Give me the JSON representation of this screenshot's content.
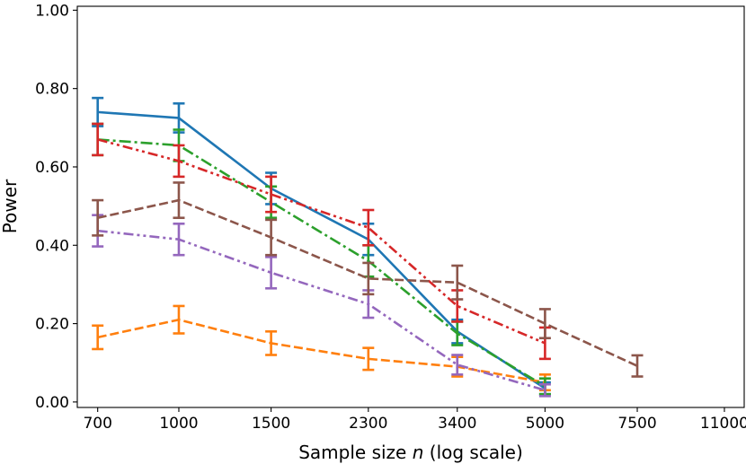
{
  "chart_data": {
    "type": "line",
    "title": "",
    "xlabel": "Sample size n (log scale)",
    "xlabel_prefix": "Sample size ",
    "xlabel_var": "n",
    "xlabel_suffix": " (log scale)",
    "ylabel": "Power",
    "xscale": "log",
    "x_ticks": [
      700,
      1000,
      1500,
      2300,
      3400,
      5000,
      7500,
      11000
    ],
    "x_tick_labels": [
      "700",
      "1000",
      "1500",
      "2300",
      "3400",
      "5000",
      "7500",
      "11000"
    ],
    "y_ticks": [
      0.0,
      0.2,
      0.4,
      0.6,
      0.8,
      1.0
    ],
    "y_tick_labels": [
      "0.00",
      "0.20",
      "0.40",
      "0.60",
      "0.80",
      "1.00"
    ],
    "ylim": [
      0.0,
      1.0
    ],
    "legend": "none",
    "grid": false,
    "series": [
      {
        "name": "series-blue",
        "color": "#1f77b4",
        "dash": "solid",
        "x": [
          700,
          1000,
          1500,
          2300,
          3400,
          5000
        ],
        "y": [
          0.74,
          0.725,
          0.545,
          0.415,
          0.18,
          0.035
        ],
        "err": [
          0.036,
          0.037,
          0.04,
          0.04,
          0.03,
          0.015
        ]
      },
      {
        "name": "series-orange",
        "color": "#ff7f0e",
        "dash": "dashed",
        "x": [
          700,
          1000,
          1500,
          2300,
          3400,
          5000
        ],
        "y": [
          0.165,
          0.21,
          0.15,
          0.11,
          0.09,
          0.05
        ],
        "err": [
          0.03,
          0.035,
          0.03,
          0.028,
          0.025,
          0.02
        ]
      },
      {
        "name": "series-green",
        "color": "#2ca02c",
        "dash": "dashdot",
        "x": [
          700,
          1000,
          1500,
          2300,
          3400,
          5000
        ],
        "y": [
          0.67,
          0.655,
          0.51,
          0.36,
          0.175,
          0.04
        ],
        "err": [
          0.04,
          0.04,
          0.04,
          0.04,
          0.03,
          0.02
        ]
      },
      {
        "name": "series-red",
        "color": "#d62728",
        "dash": "dashdotdot",
        "x": [
          700,
          1000,
          1500,
          2300,
          3400,
          5000
        ],
        "y": [
          0.67,
          0.615,
          0.53,
          0.445,
          0.245,
          0.15
        ],
        "err": [
          0.04,
          0.04,
          0.045,
          0.045,
          0.04,
          0.04
        ]
      },
      {
        "name": "series-purple",
        "color": "#9467bd",
        "dash": "dashdotdot",
        "x": [
          700,
          1000,
          1500,
          2300,
          3400,
          5000
        ],
        "y": [
          0.437,
          0.415,
          0.33,
          0.25,
          0.095,
          0.03
        ],
        "err": [
          0.04,
          0.04,
          0.04,
          0.035,
          0.025,
          0.015
        ]
      },
      {
        "name": "series-brown",
        "color": "#8c564b",
        "dash": "dashed",
        "x": [
          700,
          1000,
          1500,
          2300,
          3400,
          5000,
          7500
        ],
        "y": [
          0.47,
          0.515,
          0.42,
          0.315,
          0.305,
          0.2,
          0.092
        ],
        "err": [
          0.045,
          0.045,
          0.045,
          0.04,
          0.043,
          0.037,
          0.027
        ]
      }
    ]
  }
}
